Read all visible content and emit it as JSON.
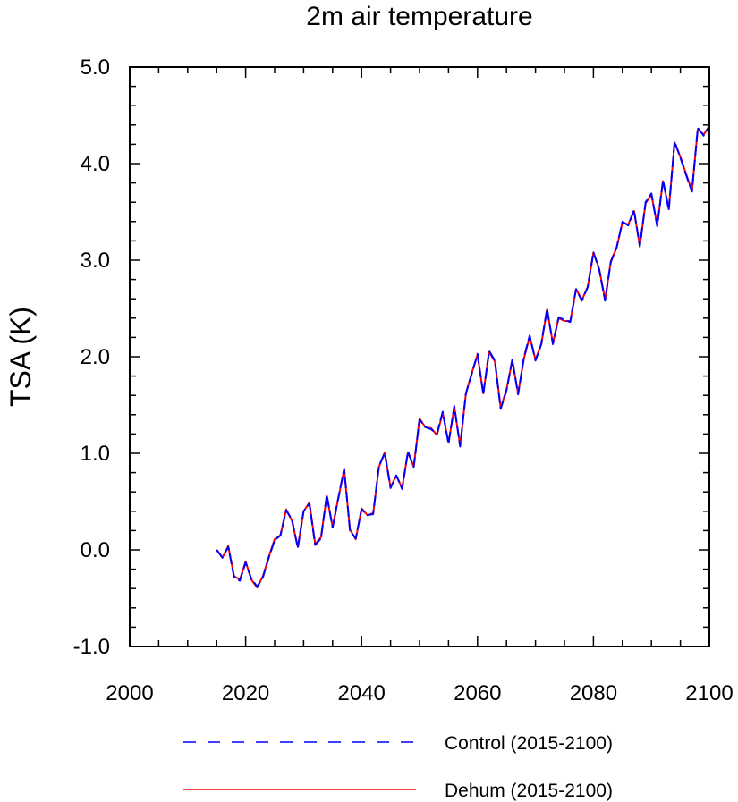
{
  "chart_data": {
    "type": "line",
    "title": "2m air temperature",
    "xlabel": "",
    "ylabel": "TSA  (K)",
    "xlim": [
      2000,
      2100
    ],
    "ylim": [
      -1.0,
      5.0
    ],
    "x_ticks": [
      2000,
      2020,
      2040,
      2060,
      2080,
      2100
    ],
    "x_tick_labels": [
      "2000",
      "2020",
      "2040",
      "2060",
      "2080",
      "2100"
    ],
    "y_ticks": [
      -1.0,
      0.0,
      1.0,
      2.0,
      3.0,
      4.0,
      5.0
    ],
    "y_tick_labels": [
      "-1.0",
      "0.0",
      "1.0",
      "2.0",
      "3.0",
      "4.0",
      "5.0"
    ],
    "grid": false,
    "legend_position": "bottom",
    "x": [
      2015,
      2016,
      2017,
      2018,
      2019,
      2020,
      2021,
      2022,
      2023,
      2024,
      2025,
      2026,
      2027,
      2028,
      2029,
      2030,
      2031,
      2032,
      2033,
      2034,
      2035,
      2036,
      2037,
      2038,
      2039,
      2040,
      2041,
      2042,
      2043,
      2044,
      2045,
      2046,
      2047,
      2048,
      2049,
      2050,
      2051,
      2052,
      2053,
      2054,
      2055,
      2056,
      2057,
      2058,
      2059,
      2060,
      2061,
      2062,
      2063,
      2064,
      2065,
      2066,
      2067,
      2068,
      2069,
      2070,
      2071,
      2072,
      2073,
      2074,
      2075,
      2076,
      2077,
      2078,
      2079,
      2080,
      2081,
      2082,
      2083,
      2084,
      2085,
      2086,
      2087,
      2088,
      2089,
      2090,
      2091,
      2092,
      2093,
      2094,
      2095,
      2096,
      2097,
      2098,
      2099,
      2100
    ],
    "series": [
      {
        "name": "Control (2015-2100)",
        "color": "#0000ff",
        "style": "dashed",
        "values": [
          0.0,
          -0.08,
          0.03,
          -0.28,
          -0.32,
          -0.13,
          -0.3,
          -0.38,
          -0.28,
          -0.08,
          0.1,
          0.15,
          0.41,
          0.31,
          0.02,
          0.4,
          0.48,
          0.05,
          0.12,
          0.57,
          0.23,
          0.54,
          0.84,
          0.2,
          0.12,
          0.42,
          0.36,
          0.37,
          0.87,
          1.0,
          0.64,
          0.77,
          0.63,
          1.02,
          0.86,
          1.35,
          1.27,
          1.25,
          1.2,
          1.43,
          1.1,
          1.49,
          1.07,
          1.62,
          1.82,
          2.03,
          1.61,
          2.06,
          1.96,
          1.46,
          1.65,
          1.97,
          1.61,
          1.99,
          2.22,
          1.96,
          2.13,
          2.5,
          2.13,
          2.41,
          2.38,
          2.36,
          2.7,
          2.58,
          2.72,
          3.08,
          2.9,
          2.58,
          2.98,
          3.13,
          3.4,
          3.36,
          3.52,
          3.14,
          3.6,
          3.69,
          3.35,
          3.83,
          3.52,
          4.23,
          4.06,
          3.88,
          3.71,
          4.37,
          4.29,
          4.39
        ]
      },
      {
        "name": "Dehum (2015-2100)",
        "color": "#ff0000",
        "style": "solid",
        "values": [
          0.0,
          -0.08,
          0.04,
          -0.27,
          -0.31,
          -0.12,
          -0.31,
          -0.39,
          -0.27,
          -0.07,
          0.11,
          0.15,
          0.42,
          0.3,
          0.03,
          0.4,
          0.49,
          0.06,
          0.13,
          0.56,
          0.24,
          0.54,
          0.83,
          0.21,
          0.11,
          0.43,
          0.36,
          0.38,
          0.86,
          1.01,
          0.65,
          0.77,
          0.64,
          1.01,
          0.86,
          1.36,
          1.27,
          1.26,
          1.19,
          1.42,
          1.11,
          1.48,
          1.08,
          1.62,
          1.83,
          2.02,
          1.62,
          2.05,
          1.95,
          1.47,
          1.66,
          1.96,
          1.62,
          1.98,
          2.21,
          1.97,
          2.13,
          2.49,
          2.14,
          2.4,
          2.37,
          2.37,
          2.7,
          2.59,
          2.72,
          3.08,
          2.91,
          2.59,
          2.99,
          3.13,
          3.39,
          3.37,
          3.51,
          3.15,
          3.59,
          3.68,
          3.36,
          3.82,
          3.53,
          4.22,
          4.07,
          3.89,
          3.72,
          4.36,
          4.3,
          4.39
        ]
      }
    ]
  }
}
